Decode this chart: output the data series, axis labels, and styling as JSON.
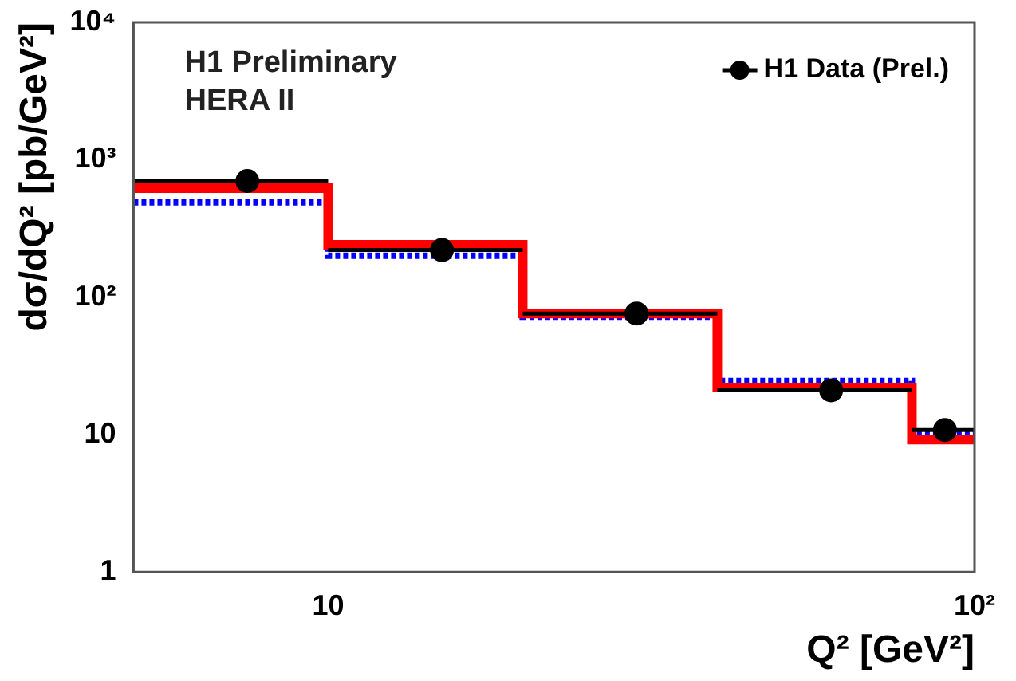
{
  "chart_data": {
    "type": "step",
    "xlabel": "Q² [GeV²]",
    "ylabel": "dσ/dQ² [pb/GeV²]",
    "annotations": [
      "H1 Preliminary",
      "HERA II"
    ],
    "log": "xy",
    "grid": false,
    "legend": "top right",
    "xlim": [
      5,
      100
    ],
    "xticks": [
      10,
      {
        "value": 100,
        "label": "10²"
      }
    ],
    "ylim": [
      1,
      10000
    ],
    "yticks": [
      1,
      10,
      {
        "value": 100,
        "label": "10²"
      },
      {
        "value": 1000,
        "label": "10³"
      },
      {
        "value": 10000,
        "label": "10⁴"
      }
    ],
    "series": [
      {
        "type": "step",
        "color": "#ff0000",
        "line_style": "solid",
        "x": [
          5,
          10,
          20,
          40,
          80,
          100
        ],
        "values": [
          620,
          240,
          76,
          22,
          9.2,
          9.2
        ]
      },
      {
        "type": "step",
        "color": "#0000ff",
        "line_style": "dotted",
        "x": [
          5,
          10,
          20,
          40,
          80,
          100
        ],
        "values": [
          490,
          200,
          72,
          24.5,
          10.5,
          10.5
        ]
      },
      {
        "type": "scatter",
        "name": "H1 Data (Prel.)",
        "color": "#000000",
        "marker": "circle",
        "x": [
          7.5,
          15,
          30,
          60,
          90
        ],
        "values": [
          700,
          220,
          76,
          21,
          10.8
        ],
        "xerrors": [
          [
            5,
            10
          ],
          [
            10,
            20
          ],
          [
            20,
            40
          ],
          [
            40,
            80
          ],
          [
            80,
            100
          ]
        ]
      }
    ]
  }
}
